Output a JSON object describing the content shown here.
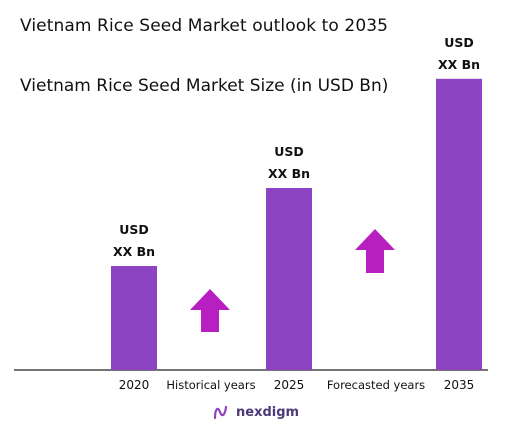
{
  "header": {
    "title": "Vietnam Rice Seed Market outlook to 2035",
    "subtitle": "Vietnam Rice Seed Market Size (in USD Bn)"
  },
  "chart_data": {
    "type": "bar",
    "categories": [
      "2020",
      "2025",
      "2035"
    ],
    "values": [
      20,
      35,
      56
    ],
    "data_labels": [
      [
        "USD",
        "XX Bn"
      ],
      [
        "USD",
        "XX Bn"
      ],
      [
        "USD",
        "XX Bn"
      ]
    ],
    "ylim": [
      0,
      60
    ],
    "grid": false,
    "bar_color": "#8d44c3",
    "period_labels": [
      "Historical years",
      "Forecasted years"
    ],
    "arrow_color": "#b81fc0",
    "title": "Vietnam Rice Seed Market Size (in USD Bn)"
  },
  "footer": {
    "brand": "nexdigm"
  }
}
